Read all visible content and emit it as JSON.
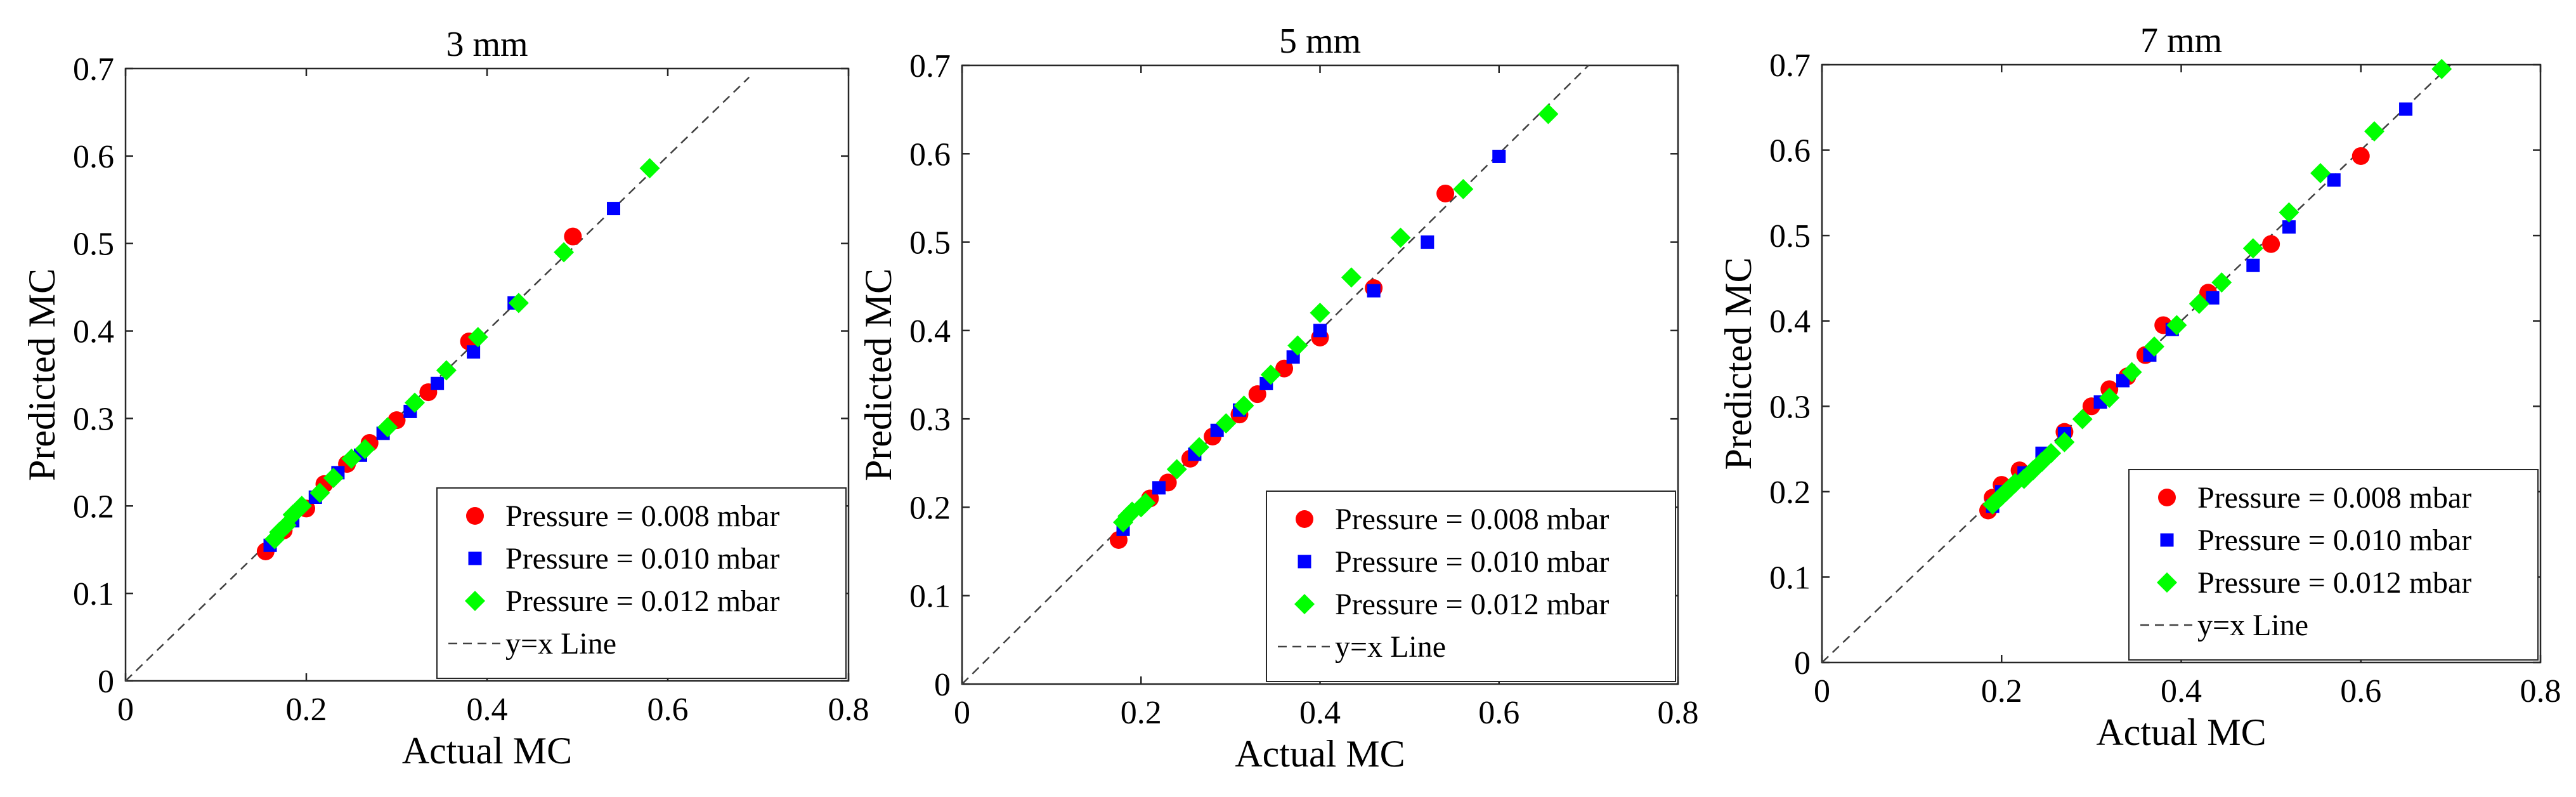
{
  "chart_data": [
    {
      "type": "scatter",
      "title": "3 mm",
      "xlabel": "Actual MC",
      "ylabel": "Predicted MC",
      "xlim": [
        0,
        0.8
      ],
      "ylim": [
        0,
        0.7
      ],
      "xticks": [
        "0",
        "0.2",
        "0.4",
        "0.6",
        "0.8"
      ],
      "yticks": [
        "0",
        "0.1",
        "0.2",
        "0.3",
        "0.4",
        "0.5",
        "0.6",
        "0.7"
      ],
      "legend_position": "bottom-right",
      "series": [
        {
          "name": "Pressure = 0.008 mbar",
          "marker": "circle",
          "color": "#ff0000",
          "points": [
            [
              0.155,
              0.148
            ],
            [
              0.175,
              0.172
            ],
            [
              0.2,
              0.197
            ],
            [
              0.22,
              0.225
            ],
            [
              0.245,
              0.248
            ],
            [
              0.27,
              0.272
            ],
            [
              0.3,
              0.298
            ],
            [
              0.335,
              0.33
            ],
            [
              0.38,
              0.388
            ],
            [
              0.495,
              0.508
            ]
          ]
        },
        {
          "name": "Pressure = 0.010 mbar",
          "marker": "square",
          "color": "#0000ff",
          "points": [
            [
              0.16,
              0.155
            ],
            [
              0.185,
              0.183
            ],
            [
              0.21,
              0.21
            ],
            [
              0.235,
              0.238
            ],
            [
              0.26,
              0.258
            ],
            [
              0.285,
              0.283
            ],
            [
              0.315,
              0.308
            ],
            [
              0.345,
              0.34
            ],
            [
              0.385,
              0.376
            ],
            [
              0.43,
              0.432
            ],
            [
              0.54,
              0.54
            ]
          ]
        },
        {
          "name": "Pressure = 0.012 mbar",
          "marker": "diamond",
          "color": "#00ff00",
          "points": [
            [
              0.165,
              0.162
            ],
            [
              0.17,
              0.17
            ],
            [
              0.178,
              0.178
            ],
            [
              0.185,
              0.19
            ],
            [
              0.195,
              0.2
            ],
            [
              0.215,
              0.215
            ],
            [
              0.23,
              0.232
            ],
            [
              0.25,
              0.254
            ],
            [
              0.265,
              0.265
            ],
            [
              0.29,
              0.29
            ],
            [
              0.32,
              0.318
            ],
            [
              0.355,
              0.355
            ],
            [
              0.39,
              0.393
            ],
            [
              0.435,
              0.432
            ],
            [
              0.485,
              0.49
            ],
            [
              0.58,
              0.586
            ]
          ]
        }
      ],
      "reference_line": {
        "name": "y=x Line",
        "from": [
          0,
          0
        ],
        "to": [
          0.69,
          0.69
        ]
      }
    },
    {
      "type": "scatter",
      "title": "5 mm",
      "xlabel": "Actual MC",
      "ylabel": "Predicted MC",
      "xlim": [
        0,
        0.8
      ],
      "ylim": [
        0,
        0.7
      ],
      "xticks": [
        "0",
        "0.2",
        "0.4",
        "0.6",
        "0.8"
      ],
      "yticks": [
        "0",
        "0.1",
        "0.2",
        "0.3",
        "0.4",
        "0.5",
        "0.6",
        "0.7"
      ],
      "legend_position": "bottom-right",
      "series": [
        {
          "name": "Pressure = 0.008 mbar",
          "marker": "circle",
          "color": "#ff0000",
          "points": [
            [
              0.175,
              0.163
            ],
            [
              0.21,
              0.21
            ],
            [
              0.23,
              0.228
            ],
            [
              0.255,
              0.255
            ],
            [
              0.28,
              0.28
            ],
            [
              0.31,
              0.305
            ],
            [
              0.33,
              0.328
            ],
            [
              0.36,
              0.357
            ],
            [
              0.4,
              0.392
            ],
            [
              0.46,
              0.448
            ],
            [
              0.54,
              0.555
            ]
          ]
        },
        {
          "name": "Pressure = 0.010 mbar",
          "marker": "square",
          "color": "#0000ff",
          "points": [
            [
              0.18,
              0.175
            ],
            [
              0.22,
              0.222
            ],
            [
              0.26,
              0.26
            ],
            [
              0.285,
              0.287
            ],
            [
              0.31,
              0.31
            ],
            [
              0.34,
              0.34
            ],
            [
              0.37,
              0.37
            ],
            [
              0.4,
              0.4
            ],
            [
              0.46,
              0.445
            ],
            [
              0.52,
              0.5
            ],
            [
              0.6,
              0.597
            ]
          ]
        },
        {
          "name": "Pressure = 0.012 mbar",
          "marker": "diamond",
          "color": "#00ff00",
          "points": [
            [
              0.18,
              0.183
            ],
            [
              0.185,
              0.19
            ],
            [
              0.19,
              0.195
            ],
            [
              0.2,
              0.2
            ],
            [
              0.205,
              0.205
            ],
            [
              0.24,
              0.243
            ],
            [
              0.265,
              0.268
            ],
            [
              0.295,
              0.295
            ],
            [
              0.315,
              0.315
            ],
            [
              0.345,
              0.35
            ],
            [
              0.375,
              0.383
            ],
            [
              0.4,
              0.42
            ],
            [
              0.435,
              0.46
            ],
            [
              0.49,
              0.505
            ],
            [
              0.56,
              0.56
            ],
            [
              0.655,
              0.645
            ]
          ]
        }
      ],
      "reference_line": {
        "name": "y=x Line",
        "from": [
          0,
          0
        ],
        "to": [
          0.7,
          0.7
        ]
      }
    },
    {
      "type": "scatter",
      "title": "7 mm",
      "xlabel": "Actual MC",
      "ylabel": "Predicted MC",
      "xlim": [
        0,
        0.8
      ],
      "ylim": [
        0,
        0.7
      ],
      "xticks": [
        "0",
        "0.2",
        "0.4",
        "0.6",
        "0.8"
      ],
      "yticks": [
        "0",
        "0.1",
        "0.2",
        "0.3",
        "0.4",
        "0.5",
        "0.6",
        "0.7"
      ],
      "legend_position": "bottom-right",
      "series": [
        {
          "name": "Pressure = 0.008 mbar",
          "marker": "circle",
          "color": "#ff0000",
          "points": [
            [
              0.185,
              0.178
            ],
            [
              0.19,
              0.193
            ],
            [
              0.2,
              0.208
            ],
            [
              0.22,
              0.225
            ],
            [
              0.27,
              0.27
            ],
            [
              0.3,
              0.3
            ],
            [
              0.32,
              0.32
            ],
            [
              0.34,
              0.335
            ],
            [
              0.36,
              0.36
            ],
            [
              0.38,
              0.395
            ],
            [
              0.43,
              0.433
            ],
            [
              0.5,
              0.49
            ],
            [
              0.6,
              0.593
            ]
          ]
        },
        {
          "name": "Pressure = 0.010 mbar",
          "marker": "square",
          "color": "#0000ff",
          "points": [
            [
              0.19,
              0.183
            ],
            [
              0.2,
              0.2
            ],
            [
              0.225,
              0.222
            ],
            [
              0.245,
              0.245
            ],
            [
              0.27,
              0.268
            ],
            [
              0.31,
              0.305
            ],
            [
              0.335,
              0.33
            ],
            [
              0.365,
              0.36
            ],
            [
              0.39,
              0.39
            ],
            [
              0.435,
              0.427
            ],
            [
              0.48,
              0.465
            ],
            [
              0.52,
              0.51
            ],
            [
              0.57,
              0.565
            ],
            [
              0.65,
              0.648
            ]
          ]
        },
        {
          "name": "Pressure = 0.012 mbar",
          "marker": "diamond",
          "color": "#00ff00",
          "points": [
            [
              0.19,
              0.185
            ],
            [
              0.195,
              0.19
            ],
            [
              0.2,
              0.195
            ],
            [
              0.205,
              0.2
            ],
            [
              0.21,
              0.205
            ],
            [
              0.215,
              0.21
            ],
            [
              0.225,
              0.215
            ],
            [
              0.235,
              0.225
            ],
            [
              0.245,
              0.235
            ],
            [
              0.255,
              0.245
            ],
            [
              0.27,
              0.258
            ],
            [
              0.29,
              0.285
            ],
            [
              0.32,
              0.31
            ],
            [
              0.345,
              0.34
            ],
            [
              0.37,
              0.37
            ],
            [
              0.395,
              0.395
            ],
            [
              0.42,
              0.42
            ],
            [
              0.445,
              0.445
            ],
            [
              0.48,
              0.485
            ],
            [
              0.52,
              0.527
            ],
            [
              0.555,
              0.573
            ],
            [
              0.615,
              0.622
            ],
            [
              0.69,
              0.695
            ]
          ]
        }
      ],
      "reference_line": {
        "name": "y=x Line",
        "from": [
          0,
          0
        ],
        "to": [
          0.7,
          0.7
        ]
      }
    }
  ]
}
